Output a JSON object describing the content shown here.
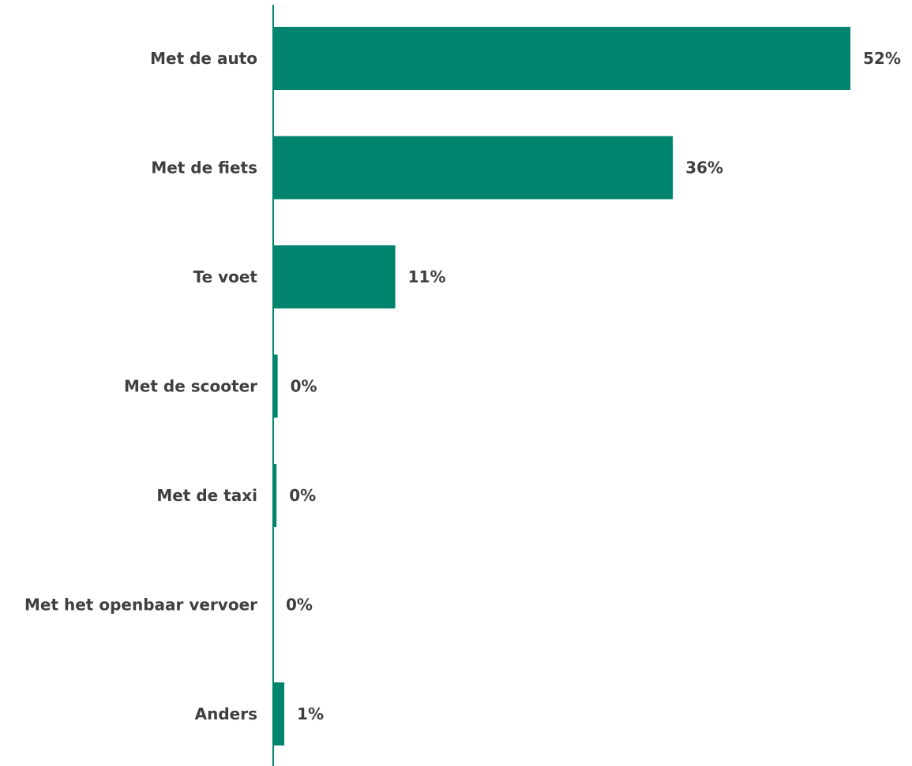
{
  "colors": {
    "bar": "#00846d",
    "axis": "#00846d",
    "text": "#3f3f3f"
  },
  "chart_data": {
    "type": "bar",
    "orientation": "horizontal",
    "categories": [
      "Met de auto",
      "Met de fiets",
      "Te voet",
      "Met de scooter",
      "Met de taxi",
      "Met het openbaar vervoer",
      "Anders"
    ],
    "values": [
      52,
      36,
      11,
      0.4,
      0.3,
      0,
      1
    ],
    "value_labels": [
      "52%",
      "36%",
      "11%",
      "0%",
      "0%",
      "0%",
      "1%"
    ],
    "xlim": [
      0,
      52
    ],
    "grid": false,
    "legend": "none"
  }
}
